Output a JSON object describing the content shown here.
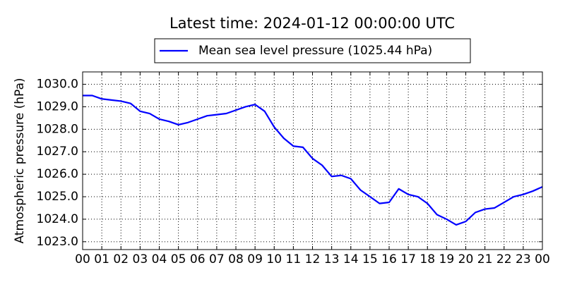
{
  "chart_data": {
    "type": "line",
    "title": "Latest time: 2024-01-12 00:00:00 UTC",
    "y_label": "Atmospheric pressure (hPa)",
    "x": [
      0,
      0.5,
      1,
      1.5,
      2,
      2.5,
      3,
      3.5,
      4,
      4.5,
      5,
      5.5,
      6,
      6.5,
      7,
      7.5,
      8,
      8.5,
      9,
      9.5,
      10,
      10.5,
      11,
      11.5,
      12,
      12.5,
      13,
      13.5,
      14,
      14.5,
      15,
      15.5,
      16,
      16.5,
      17,
      17.5,
      18,
      18.5,
      19,
      19.5,
      20,
      20.5,
      21,
      21.5,
      22,
      22.5,
      23,
      23.5,
      24
    ],
    "series": [
      {
        "name": "Mean sea level pressure (1025.44 hPa)",
        "color": "#0000ff",
        "values": [
          1029.5,
          1029.5,
          1029.35,
          1029.3,
          1029.25,
          1029.15,
          1028.8,
          1028.7,
          1028.45,
          1028.35,
          1028.2,
          1028.3,
          1028.45,
          1028.6,
          1028.65,
          1028.7,
          1028.85,
          1029.0,
          1029.1,
          1028.8,
          1028.1,
          1027.6,
          1027.25,
          1027.2,
          1026.7,
          1026.4,
          1025.9,
          1025.95,
          1025.8,
          1025.3,
          1025.0,
          1024.7,
          1024.75,
          1025.35,
          1025.1,
          1025.0,
          1024.7,
          1024.2,
          1024.0,
          1023.75,
          1023.9,
          1024.3,
          1024.45,
          1024.5,
          1024.75,
          1025.0,
          1025.1,
          1025.25,
          1025.44
        ]
      }
    ],
    "xlim": [
      0,
      24
    ],
    "xticks": [
      {
        "value": 0,
        "label": "00"
      },
      {
        "value": 1,
        "label": "01"
      },
      {
        "value": 2,
        "label": "02"
      },
      {
        "value": 3,
        "label": "03"
      },
      {
        "value": 4,
        "label": "04"
      },
      {
        "value": 5,
        "label": "05"
      },
      {
        "value": 6,
        "label": "06"
      },
      {
        "value": 7,
        "label": "07"
      },
      {
        "value": 8,
        "label": "08"
      },
      {
        "value": 9,
        "label": "09"
      },
      {
        "value": 10,
        "label": "10"
      },
      {
        "value": 11,
        "label": "11"
      },
      {
        "value": 12,
        "label": "12"
      },
      {
        "value": 13,
        "label": "13"
      },
      {
        "value": 14,
        "label": "14"
      },
      {
        "value": 15,
        "label": "15"
      },
      {
        "value": 16,
        "label": "16"
      },
      {
        "value": 17,
        "label": "17"
      },
      {
        "value": 18,
        "label": "18"
      },
      {
        "value": 19,
        "label": "19"
      },
      {
        "value": 20,
        "label": "20"
      },
      {
        "value": 21,
        "label": "21"
      },
      {
        "value": 22,
        "label": "22"
      },
      {
        "value": 23,
        "label": "23"
      },
      {
        "value": 24,
        "label": "00"
      }
    ],
    "ylim": [
      1022.65,
      1030.55
    ],
    "yticks": [
      {
        "value": 1023,
        "label": "1023.0"
      },
      {
        "value": 1024,
        "label": "1024.0"
      },
      {
        "value": 1025,
        "label": "1025.0"
      },
      {
        "value": 1026,
        "label": "1026.0"
      },
      {
        "value": 1027,
        "label": "1027.0"
      },
      {
        "value": 1028,
        "label": "1028.0"
      },
      {
        "value": 1029,
        "label": "1029.0"
      },
      {
        "value": 1030,
        "label": "1030.0"
      }
    ],
    "grid": true,
    "legend": "top"
  }
}
